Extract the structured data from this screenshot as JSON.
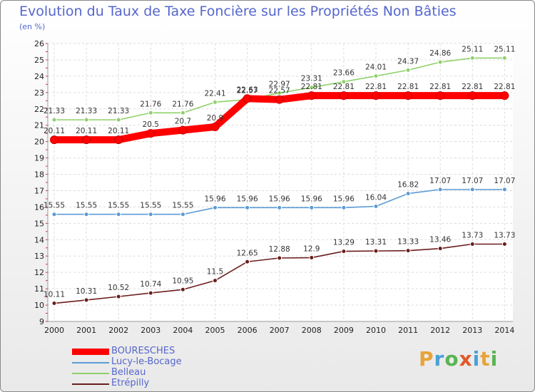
{
  "title": "Evolution du Taux de Taxe Foncière sur les Propriétés Non Bâties",
  "unit_label": "(en %)",
  "brand": {
    "letters": [
      "P",
      "r",
      "o",
      "x",
      "i",
      "t",
      "i"
    ],
    "colors": [
      "#e8a33a",
      "#4aa0d8",
      "#5ab552",
      "#e05a2a",
      "#4aa0d8",
      "#e8a33a",
      "#5ab552"
    ]
  },
  "chart_data": {
    "type": "line",
    "title": "Evolution du Taux de Taxe Foncière sur les Propriétés Non Bâties",
    "ylabel": "(en %)",
    "xlabel": "",
    "x": [
      "2000",
      "2001",
      "2002",
      "2003",
      "2004",
      "2005",
      "2006",
      "2007",
      "2008",
      "2009",
      "2010",
      "2011",
      "2012",
      "2013",
      "2014"
    ],
    "ylim": [
      9,
      26
    ],
    "yticks": [
      "9",
      "10",
      "11",
      "12",
      "13",
      "14",
      "15",
      "16",
      "17",
      "18",
      "19",
      "20",
      "21",
      "22",
      "23",
      "24",
      "25",
      "26"
    ],
    "grid": true,
    "series": [
      {
        "name": "BOURESCHES",
        "color": "#ff0000",
        "values": [
          20.11,
          20.11,
          20.11,
          20.5,
          20.7,
          20.9,
          22.63,
          22.57,
          22.81,
          22.81,
          22.81,
          22.81,
          22.81,
          22.81,
          22.81
        ],
        "labels": [
          "20.11",
          "20.11",
          "20.11",
          "20.5",
          "20.7",
          "20.9",
          "22.63",
          "22.57",
          "22.81",
          "22.81",
          "22.81",
          "22.81",
          "22.81",
          "22.81",
          "22.81"
        ]
      },
      {
        "name": "Lucy-le-Bocage",
        "color": "#5b9bd5",
        "values": [
          15.55,
          15.55,
          15.55,
          15.55,
          15.55,
          15.96,
          15.96,
          15.96,
          15.96,
          15.96,
          16.04,
          16.82,
          17.07,
          17.07,
          17.07
        ],
        "labels": [
          "15.55",
          "15.55",
          "15.55",
          "15.55",
          "15.55",
          "15.96",
          "15.96",
          "15.96",
          "15.96",
          "15.96",
          "16.04",
          "16.82",
          "17.07",
          "17.07",
          "17.07"
        ]
      },
      {
        "name": "Belleau",
        "color": "#8fd16a",
        "values": [
          21.33,
          21.33,
          21.33,
          21.76,
          21.76,
          22.41,
          22.57,
          22.97,
          23.31,
          23.66,
          24.01,
          24.37,
          24.86,
          25.11,
          25.11
        ],
        "labels": [
          "21.33",
          "21.33",
          "21.33",
          "21.76",
          "21.76",
          "22.41",
          "22.57",
          "22.97",
          "23.31",
          "23.66",
          "24.01",
          "24.37",
          "24.86",
          "25.11",
          "25.11"
        ]
      },
      {
        "name": "Etrépilly",
        "color": "#6b1d1d",
        "values": [
          10.11,
          10.31,
          10.52,
          10.74,
          10.95,
          11.5,
          12.65,
          12.88,
          12.9,
          13.29,
          13.31,
          13.33,
          13.46,
          13.73,
          13.73
        ],
        "labels": [
          "10.11",
          "10.31",
          "10.52",
          "10.74",
          "10.95",
          "11.5",
          "12.65",
          "12.88",
          "12.9",
          "13.29",
          "13.31",
          "13.33",
          "13.46",
          "13.73",
          "13.73"
        ]
      }
    ],
    "legend": [
      "BOURESCHES",
      "Lucy-le-Bocage",
      "Belleau",
      "Etrépilly"
    ]
  }
}
